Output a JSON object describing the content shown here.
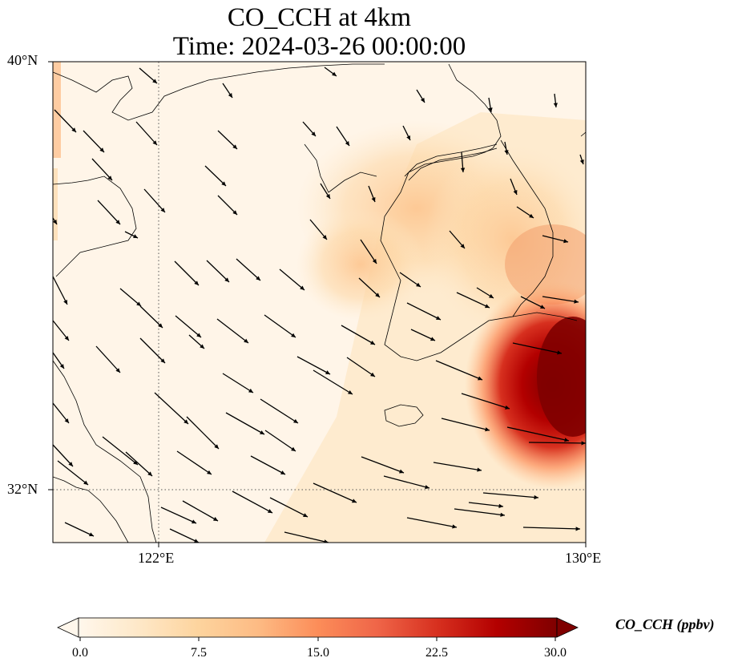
{
  "title_line1": "CO_CCH at 4km",
  "title_line2": "Time: 2024-03-26 00:00:00",
  "map": {
    "lon_range": [
      120,
      130
    ],
    "lat_range": [
      31,
      40
    ],
    "gridlines": {
      "lon": [
        122
      ],
      "lat": [
        32
      ],
      "style": "dotted"
    },
    "lon_ticks": [
      "122°E",
      "130°E"
    ],
    "lat_ticks": [
      "40°N",
      "32°N"
    ],
    "field": "CO_CCH",
    "wind_vectors": true,
    "hotspot": "southern Korean peninsula / Japan sea region (southeast corner)"
  },
  "colorbar": {
    "label": "CO_CCH (ppbv)",
    "ticks": [
      "0.0",
      "7.5",
      "15.0",
      "22.5",
      "30.0"
    ],
    "min": 0,
    "max": 30,
    "cmap": [
      "#fff7ec",
      "#fee8c8",
      "#fdd49e",
      "#fdbb84",
      "#fc8d59",
      "#ef6548",
      "#d7301f",
      "#b30000",
      "#7f0000"
    ],
    "extend": "both"
  },
  "chart_data": {
    "type": "heatmap",
    "title": "CO_CCH at 4km\nTime: 2024-03-26 00:00:00",
    "xlabel": "",
    "ylabel": "",
    "x_ticks": [
      "122°E",
      "130°E"
    ],
    "y_ticks": [
      "40°N",
      "32°N"
    ],
    "colorbar_label": "CO_CCH (ppbv)",
    "colorbar_range": [
      0,
      30
    ],
    "colorbar_ticks": [
      0.0,
      7.5,
      15.0,
      22.5,
      30.0
    ]
  }
}
